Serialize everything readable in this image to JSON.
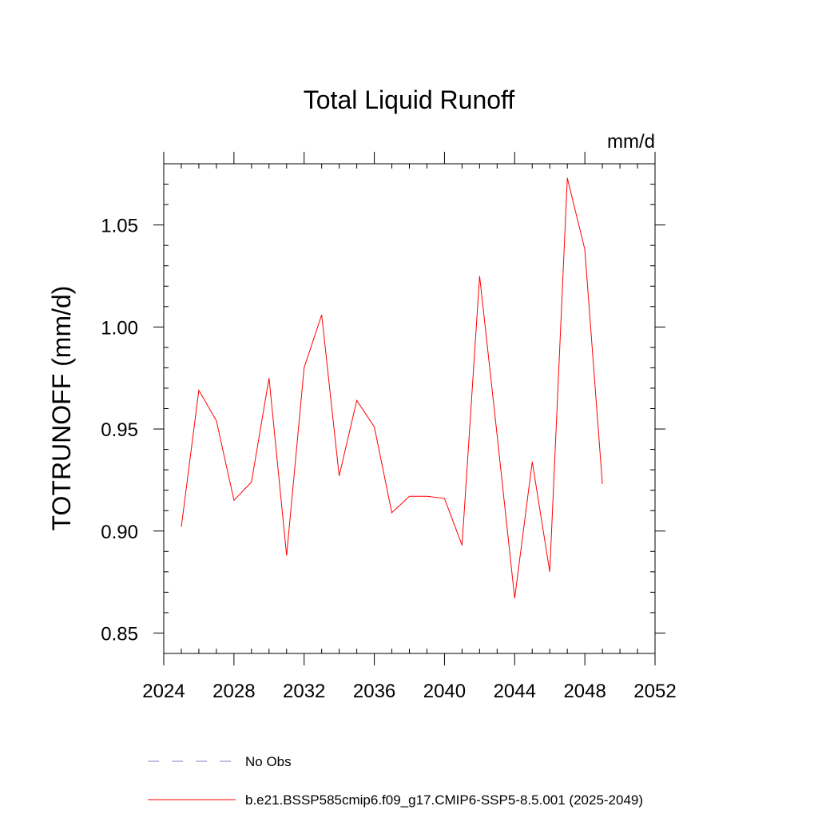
{
  "chart_data": {
    "type": "line",
    "title": "Total Liquid Runoff",
    "units_label": "mm/d",
    "ylabel": "TOTRUNOFF  (mm/d)",
    "xlabel": "",
    "xlim": [
      2024,
      2052
    ],
    "ylim": [
      0.84,
      1.08
    ],
    "x_ticks": [
      2024,
      2028,
      2032,
      2036,
      2040,
      2044,
      2048,
      2052
    ],
    "x_tick_labels": [
      "2024",
      "2028",
      "2032",
      "2036",
      "2040",
      "2044",
      "2048",
      "2052"
    ],
    "y_ticks": [
      0.85,
      0.9,
      0.95,
      1.0,
      1.05
    ],
    "y_tick_labels": [
      "0.85",
      "0.90",
      "0.95",
      "1.00",
      "1.05"
    ],
    "grid": false,
    "legend_position": "bottom",
    "series": [
      {
        "name": "b.e21.BSSP585cmip6.f09_g17.CMIP6-SSP5-8.5.001 (2025-2049)",
        "color": "#ff0000",
        "style": "solid",
        "x": [
          2025,
          2026,
          2027,
          2028,
          2029,
          2030,
          2031,
          2032,
          2033,
          2034,
          2035,
          2036,
          2037,
          2038,
          2039,
          2040,
          2041,
          2042,
          2043,
          2044,
          2045,
          2046,
          2047,
          2048,
          2049
        ],
        "values": [
          0.902,
          0.969,
          0.954,
          0.915,
          0.924,
          0.975,
          0.888,
          0.98,
          1.006,
          0.927,
          0.964,
          0.951,
          0.909,
          0.917,
          0.917,
          0.916,
          0.893,
          1.025,
          0.947,
          0.867,
          0.934,
          0.88,
          1.073,
          1.038,
          0.923
        ]
      }
    ],
    "legend": [
      {
        "label": "No Obs",
        "color": "#8080c0",
        "style": "dashed"
      },
      {
        "label": "b.e21.BSSP585cmip6.f09_g17.CMIP6-SSP5-8.5.001 (2025-2049)",
        "color": "#ff0000",
        "style": "solid"
      }
    ]
  }
}
